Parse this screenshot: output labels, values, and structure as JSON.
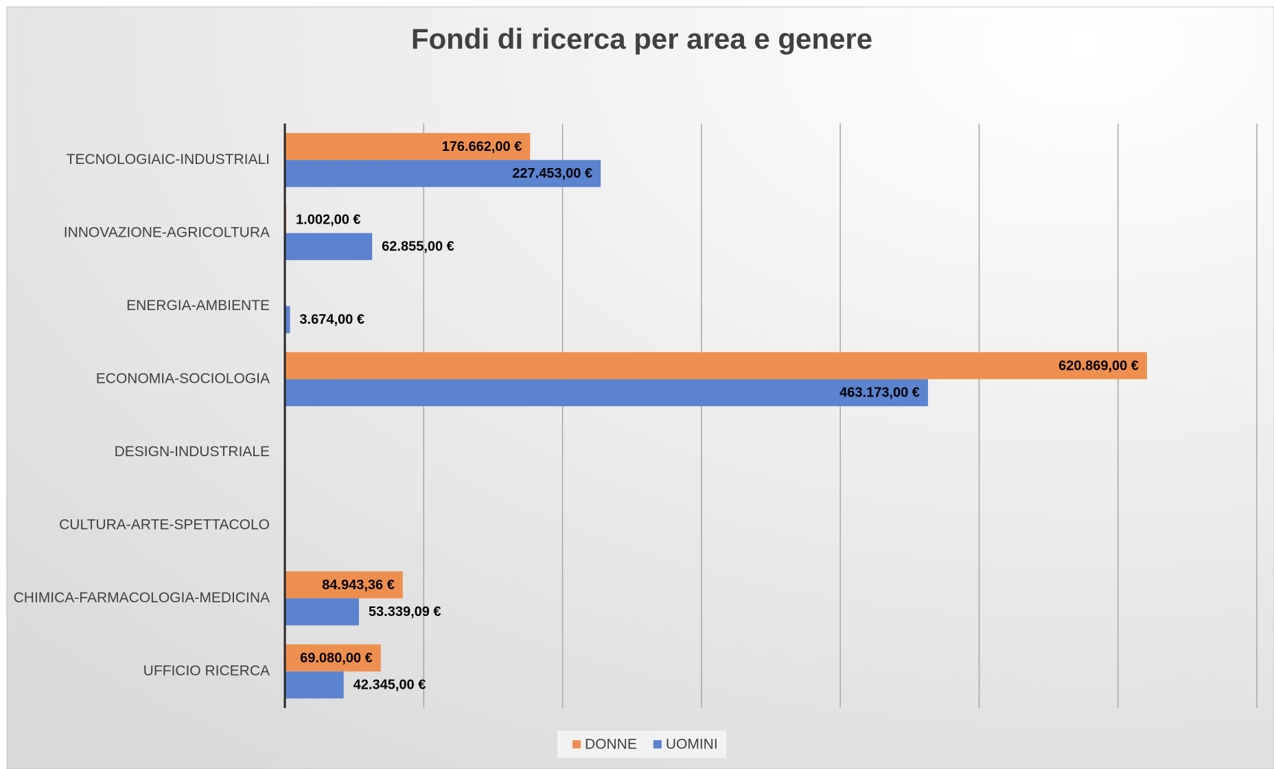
{
  "chart_data": {
    "type": "bar",
    "orientation": "horizontal",
    "title": "Fondi di ricerca per area e genere",
    "categories": [
      "TECNOLOGIAIC-INDUSTRIALI",
      "INNOVAZIONE-AGRICOLTURA",
      "ENERGIA-AMBIENTE",
      "ECONOMIA-SOCIOLOGIA",
      "DESIGN-INDUSTRIALE",
      "CULTURA-ARTE-SPETTACOLO",
      "CHIMICA-FARMACOLOGIA-MEDICINA",
      "UFFICIO RICERCA"
    ],
    "series": [
      {
        "name": "DONNE",
        "color": "#ef8f4f",
        "values": [
          176662,
          1002,
          null,
          620869,
          null,
          null,
          84943.36,
          69080
        ],
        "value_labels": [
          "176.662,00 €",
          "1.002,00 €",
          null,
          "620.869,00 €",
          null,
          null,
          "84.943,36 €",
          "69.080,00 €"
        ]
      },
      {
        "name": "UOMINI",
        "color": "#5b83cf",
        "values": [
          227453,
          62855,
          3674,
          463173,
          null,
          null,
          53339.09,
          42345
        ],
        "value_labels": [
          "227.453,00 €",
          "62.855,00 €",
          "3.674,00 €",
          "463.173,00 €",
          null,
          null,
          "53.339,09 €",
          "42.345,00 €"
        ]
      }
    ],
    "xlim": [
      0,
      700000
    ],
    "xticks": [
      0,
      100000,
      200000,
      300000,
      400000,
      500000,
      600000,
      700000
    ],
    "show_tick_labels": false,
    "grid": true,
    "legend": "bottom"
  }
}
